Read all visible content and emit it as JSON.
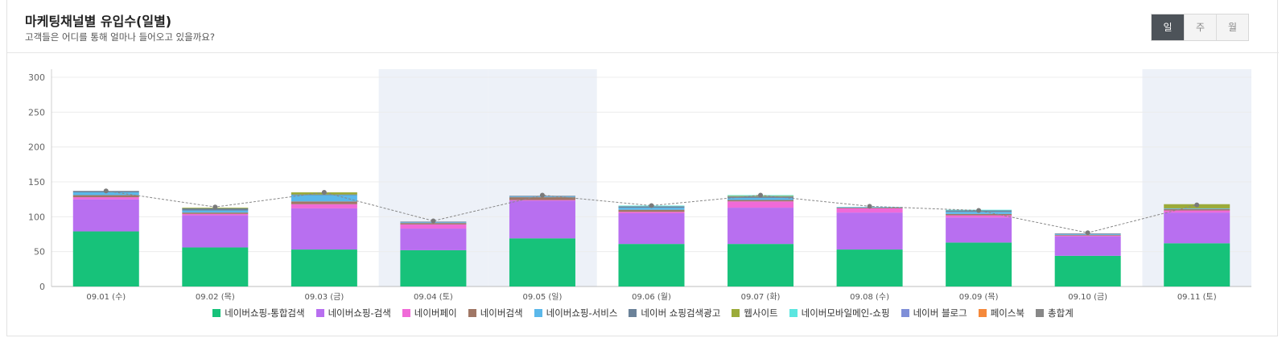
{
  "header": {
    "title": "마케팅채널별 유입수(일별)",
    "subtitle": "고객들은 어디를 통해 얼마나 들어오고 있을까요?"
  },
  "period_toggle": [
    {
      "label": "일",
      "active": true
    },
    {
      "label": "주",
      "active": false
    },
    {
      "label": "월",
      "active": false
    }
  ],
  "chart_data": {
    "type": "bar",
    "stacked": true,
    "categories": [
      "09.01 (수)",
      "09.02 (목)",
      "09.03 (금)",
      "09.04 (토)",
      "09.05 (일)",
      "09.06 (월)",
      "09.07 (화)",
      "09.08 (수)",
      "09.09 (목)",
      "09.10 (금)",
      "09.11 (토)"
    ],
    "weekend_highlight": [
      "09.04 (토)",
      "09.05 (일)",
      "09.11 (토)"
    ],
    "highlight_color": "#edf1f8",
    "ylim": [
      0,
      300
    ],
    "yticks": [
      0,
      50,
      100,
      150,
      200,
      250,
      300
    ],
    "grid": true,
    "legend_position": "bottom",
    "series": [
      {
        "name": "네이버쇼핑-통합검색",
        "color": "#17c27a",
        "values": [
          79,
          56,
          53,
          52,
          69,
          61,
          61,
          53,
          63,
          44,
          62
        ]
      },
      {
        "name": "네이버쇼핑-검색",
        "color": "#b86ff0",
        "values": [
          46,
          46,
          59,
          31,
          54,
          44,
          52,
          53,
          36,
          28,
          44
        ]
      },
      {
        "name": "네이버페이",
        "color": "#f06ad8",
        "values": [
          3,
          2,
          6,
          6,
          1,
          2,
          9,
          6,
          3,
          1,
          3
        ]
      },
      {
        "name": "네이버검색",
        "color": "#a07765",
        "values": [
          3,
          2,
          4,
          2,
          4,
          3,
          2,
          1,
          2,
          1,
          2
        ]
      },
      {
        "name": "네이버쇼핑-서비스",
        "color": "#5bb8ea",
        "values": [
          4,
          3,
          9,
          1,
          1,
          3,
          3,
          1,
          3,
          1,
          1
        ]
      },
      {
        "name": "네이버 쇼핑검색광고",
        "color": "#6b8299",
        "values": [
          2,
          3,
          1,
          1,
          1,
          2,
          2,
          0,
          2,
          1,
          0
        ]
      },
      {
        "name": "웹사이트",
        "color": "#9bab3a",
        "values": [
          0,
          1,
          3,
          0,
          0,
          0,
          1,
          0,
          0,
          0,
          6
        ]
      },
      {
        "name": "네이버모바일메인-쇼핑",
        "color": "#5ce6e0",
        "values": [
          0,
          0,
          0,
          0,
          0,
          1,
          1,
          0,
          1,
          0,
          0
        ]
      },
      {
        "name": "네이버 블로그",
        "color": "#7f8fd8",
        "values": [
          0,
          0,
          0,
          0,
          0,
          0,
          0,
          0,
          0,
          0,
          0
        ]
      },
      {
        "name": "페이스북",
        "color": "#f5893b",
        "values": [
          0,
          0,
          0,
          0,
          0,
          0,
          0,
          0,
          0,
          0,
          0
        ]
      }
    ],
    "total_line": {
      "name": "총합계",
      "color": "#888888",
      "values": [
        137,
        114,
        135,
        94,
        131,
        116,
        131,
        115,
        109,
        77,
        117
      ]
    }
  }
}
